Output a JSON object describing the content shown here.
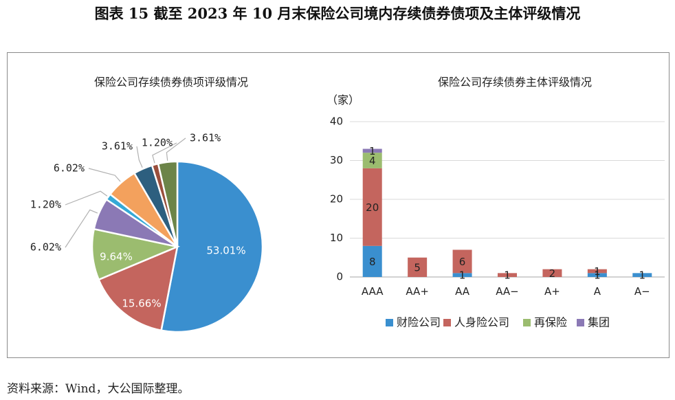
{
  "figure_title": "图表 15 截至 2023 年 10 月末保险公司境内存续债券债项及主体评级情况",
  "source_note": "资料来源：Wind，大公国际整理。",
  "colors": {
    "blue": "#3a8fcf",
    "red": "#c4655e",
    "green": "#9bbc6f",
    "purple": "#8b79b5",
    "cyan": "#35a9d6",
    "orange": "#f3a15d",
    "darkblue": "#2d5f7f",
    "brown": "#9a4f3c",
    "olive": "#6c8448",
    "grid": "#d9d9d9",
    "axis": "#a6a6a6"
  },
  "chart_data": [
    {
      "type": "pie",
      "title": "保险公司存续债券债项评级情况",
      "slices": [
        {
          "label": "53.01%",
          "value": 53.01,
          "color": "#3a8fcf",
          "label_inside": true
        },
        {
          "label": "15.66%",
          "value": 15.66,
          "color": "#c4655e",
          "label_inside": true
        },
        {
          "label": "9.64%",
          "value": 9.64,
          "color": "#9bbc6f",
          "label_inside": true
        },
        {
          "label": "6.02%",
          "value": 6.02,
          "color": "#8b79b5",
          "label_inside": false
        },
        {
          "label": "1.20%",
          "value": 1.2,
          "color": "#35a9d6",
          "label_inside": false
        },
        {
          "label": "6.02%",
          "value": 6.02,
          "color": "#f3a15d",
          "label_inside": false
        },
        {
          "label": "3.61%",
          "value": 3.61,
          "color": "#2d5f7f",
          "label_inside": false
        },
        {
          "label": "1.20%",
          "value": 1.2,
          "color": "#9a4f3c",
          "label_inside": false
        },
        {
          "label": "3.61%",
          "value": 3.61,
          "color": "#6c8448",
          "label_inside": false
        }
      ]
    },
    {
      "type": "bar",
      "stacked": true,
      "title": "保险公司存续债券主体评级情况",
      "ylabel": "（家）",
      "ylim": [
        0,
        40
      ],
      "yticks": [
        "0",
        "10",
        "20",
        "30",
        "40"
      ],
      "ytick_values": [
        0,
        10,
        20,
        30,
        40
      ],
      "grid": true,
      "legend": "bottom",
      "categories": [
        "AAA",
        "AA+",
        "AA",
        "AA−",
        "A+",
        "A",
        "A−"
      ],
      "series": [
        {
          "name": "财险公司",
          "color": "#3a8fcf",
          "values": [
            8,
            0,
            1,
            0,
            0,
            1,
            1
          ],
          "labels": [
            "8",
            "",
            "1",
            "",
            "",
            "1",
            "1"
          ]
        },
        {
          "name": "人身险公司",
          "color": "#c4655e",
          "values": [
            20,
            5,
            6,
            1,
            2,
            1,
            0
          ],
          "labels": [
            "20",
            "5",
            "6",
            "1",
            "2",
            "1",
            ""
          ]
        },
        {
          "name": "再保险",
          "color": "#9bbc6f",
          "values": [
            4,
            0,
            0,
            0,
            0,
            0,
            0
          ],
          "labels": [
            "4",
            "",
            "",
            "",
            "",
            "",
            ""
          ]
        },
        {
          "name": "集团",
          "color": "#8b79b5",
          "values": [
            1,
            0,
            0,
            0,
            0,
            0,
            0
          ],
          "labels": [
            "1",
            "",
            "",
            "",
            "",
            "",
            ""
          ]
        }
      ]
    }
  ]
}
